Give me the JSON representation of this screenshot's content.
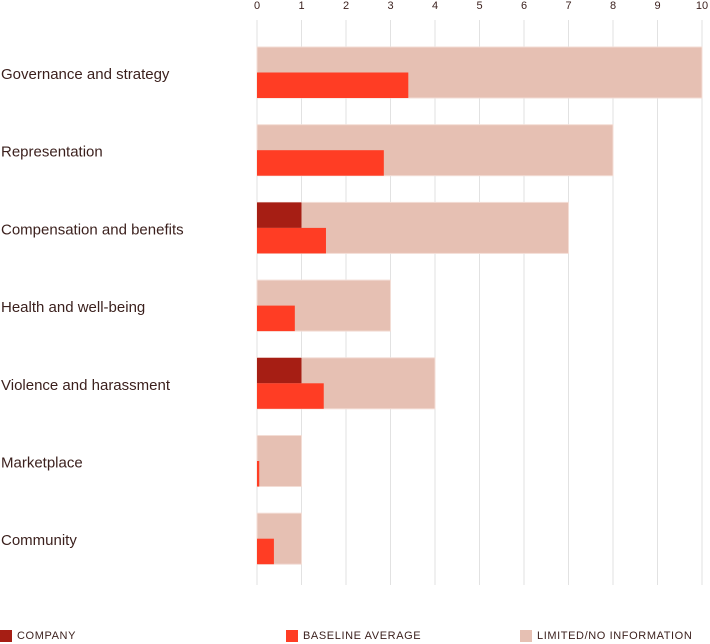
{
  "chart_data": {
    "type": "bar",
    "orientation": "horizontal",
    "xlim": [
      0,
      10
    ],
    "ticks": [
      "0",
      "1",
      "2",
      "3",
      "4",
      "5",
      "6",
      "7",
      "8",
      "9",
      "10"
    ],
    "grid": true,
    "categories": [
      "Governance and strategy",
      "Representation",
      "Compensation and benefits",
      "Health and well-being",
      "Violence and harassment",
      "Marketplace",
      "Community"
    ],
    "series": [
      {
        "name": "LIMITED/NO INFORMATION",
        "color": "#e6c0b3",
        "values": [
          10,
          8,
          7,
          3,
          4,
          1,
          1
        ]
      },
      {
        "name": "COMPANY",
        "color": "#a61e14",
        "values": [
          0,
          0,
          1,
          0,
          1,
          0,
          0
        ]
      },
      {
        "name": "BASELINE AVERAGE",
        "color": "#ff3d24",
        "values": [
          3.4,
          2.85,
          1.55,
          0.85,
          1.5,
          0.05,
          0.38
        ]
      }
    ]
  },
  "legend": {
    "company": "COMPANY",
    "baseline": "BASELINE AVERAGE",
    "limited": "LIMITED/NO INFORMATION"
  },
  "colors": {
    "company": "#a61e14",
    "baseline": "#ff3d24",
    "limited": "#e6c0b3",
    "grid": "#e2e2e2",
    "text": "#3a1f1c"
  }
}
